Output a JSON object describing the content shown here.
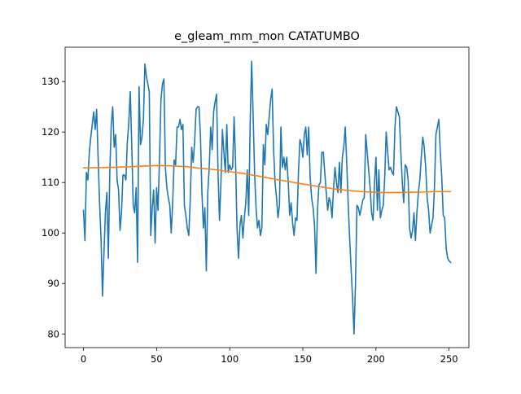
{
  "chart_data": {
    "type": "line",
    "title": "e_gleam_mm_mon CATATUMBO",
    "xlabel": "",
    "ylabel": "",
    "xlim": [
      -12.55,
      263.55
    ],
    "ylim": [
      77.3,
      136.8
    ],
    "xticks": [
      0,
      50,
      100,
      150,
      200,
      250
    ],
    "yticks": [
      80,
      90,
      100,
      110,
      120,
      130
    ],
    "grid": false,
    "series": [
      {
        "color": "#1f77b4",
        "points": [
          [
            0,
            104.5
          ],
          [
            1,
            98.5
          ],
          [
            2,
            112
          ],
          [
            3,
            110.5
          ],
          [
            4,
            116
          ],
          [
            5,
            119
          ],
          [
            6,
            121.5
          ],
          [
            7,
            124
          ],
          [
            8,
            120.5
          ],
          [
            9,
            124.5
          ],
          [
            10,
            115
          ],
          [
            11,
            106
          ],
          [
            12,
            99
          ],
          [
            13,
            87.5
          ],
          [
            14,
            96
          ],
          [
            15,
            104
          ],
          [
            16,
            108
          ],
          [
            17,
            95
          ],
          [
            18,
            112
          ],
          [
            19,
            121.5
          ],
          [
            20,
            125
          ],
          [
            21,
            117
          ],
          [
            22,
            119.5
          ],
          [
            23,
            110.5
          ],
          [
            24,
            108.5
          ],
          [
            25,
            100.5
          ],
          [
            26,
            104
          ],
          [
            27,
            111.5
          ],
          [
            28,
            111.5
          ],
          [
            29,
            110.5
          ],
          [
            30,
            118
          ],
          [
            31,
            122
          ],
          [
            32,
            128
          ],
          [
            33,
            117.5
          ],
          [
            34,
            105.5
          ],
          [
            35,
            104
          ],
          [
            36,
            109
          ],
          [
            37,
            94.2
          ],
          [
            38,
            129
          ],
          [
            39,
            117.5
          ],
          [
            40,
            119
          ],
          [
            41,
            122.5
          ],
          [
            42,
            133.5
          ],
          [
            43,
            131
          ],
          [
            44,
            129.5
          ],
          [
            45,
            128
          ],
          [
            46,
            99.5
          ],
          [
            47,
            105
          ],
          [
            48,
            108.5
          ],
          [
            49,
            98
          ],
          [
            50,
            109
          ],
          [
            51,
            104.5
          ],
          [
            52,
            115
          ],
          [
            53,
            126.5
          ],
          [
            54,
            129.5
          ],
          [
            55,
            130.5
          ],
          [
            56,
            113
          ],
          [
            57,
            109
          ],
          [
            58,
            107
          ],
          [
            59,
            105.5
          ],
          [
            60,
            100
          ],
          [
            61,
            106
          ],
          [
            62,
            114.5
          ],
          [
            63,
            113.5
          ],
          [
            64,
            121
          ],
          [
            65,
            121
          ],
          [
            66,
            122.5
          ],
          [
            67,
            120.5
          ],
          [
            68,
            121.5
          ],
          [
            69,
            105.5
          ],
          [
            70,
            103.5
          ],
          [
            71,
            101
          ],
          [
            72,
            99.5
          ],
          [
            73,
            106.5
          ],
          [
            74,
            117
          ],
          [
            75,
            114
          ],
          [
            76,
            118
          ],
          [
            77,
            124.5
          ],
          [
            78,
            125
          ],
          [
            79,
            125
          ],
          [
            80,
            119
          ],
          [
            81,
            108
          ],
          [
            82,
            101
          ],
          [
            83,
            105
          ],
          [
            84,
            92.5
          ],
          [
            85,
            108
          ],
          [
            86,
            113
          ],
          [
            87,
            121
          ],
          [
            88,
            116.5
          ],
          [
            89,
            124
          ],
          [
            90,
            126
          ],
          [
            91,
            127.5
          ],
          [
            92,
            112
          ],
          [
            93,
            102.5
          ],
          [
            94,
            110
          ],
          [
            95,
            120.5
          ],
          [
            96,
            116
          ],
          [
            97,
            112
          ],
          [
            98,
            121.5
          ],
          [
            99,
            112
          ],
          [
            100,
            113.5
          ],
          [
            101,
            112.5
          ],
          [
            102,
            113
          ],
          [
            103,
            123
          ],
          [
            104,
            114
          ],
          [
            105,
            101
          ],
          [
            106,
            95
          ],
          [
            107,
            101.5
          ],
          [
            108,
            103.5
          ],
          [
            109,
            99
          ],
          [
            110,
            103
          ],
          [
            111,
            106
          ],
          [
            112,
            112.5
          ],
          [
            113,
            103.5
          ],
          [
            114,
            122
          ],
          [
            115,
            134
          ],
          [
            116,
            123.5
          ],
          [
            117,
            112
          ],
          [
            118,
            105
          ],
          [
            119,
            101
          ],
          [
            120,
            102.5
          ],
          [
            121,
            99.5
          ],
          [
            122,
            101
          ],
          [
            123,
            117.5
          ],
          [
            124,
            113.5
          ],
          [
            125,
            121.5
          ],
          [
            126,
            119.5
          ],
          [
            127,
            123
          ],
          [
            128,
            126.5
          ],
          [
            129,
            128.5
          ],
          [
            130,
            116.5
          ],
          [
            131,
            110
          ],
          [
            132,
            107
          ],
          [
            133,
            103
          ],
          [
            134,
            105.5
          ],
          [
            135,
            121
          ],
          [
            136,
            113
          ],
          [
            137,
            115
          ],
          [
            138,
            112.5
          ],
          [
            139,
            115
          ],
          [
            140,
            110
          ],
          [
            141,
            103.5
          ],
          [
            142,
            106
          ],
          [
            143,
            102
          ],
          [
            144,
            99.5
          ],
          [
            145,
            103
          ],
          [
            146,
            102.5
          ],
          [
            147,
            112
          ],
          [
            148,
            118.5
          ],
          [
            149,
            117.5
          ],
          [
            150,
            115
          ],
          [
            151,
            119.5
          ],
          [
            152,
            121
          ],
          [
            153,
            115.5
          ],
          [
            154,
            121
          ],
          [
            155,
            111
          ],
          [
            156,
            107
          ],
          [
            157,
            105
          ],
          [
            158,
            101.5
          ],
          [
            159,
            92
          ],
          [
            160,
            104.5
          ],
          [
            161,
            109.5
          ],
          [
            162,
            110
          ],
          [
            163,
            116
          ],
          [
            164,
            116
          ],
          [
            165,
            112
          ],
          [
            166,
            108
          ],
          [
            167,
            104.5
          ],
          [
            168,
            107
          ],
          [
            169,
            106
          ],
          [
            170,
            103
          ],
          [
            171,
            109
          ],
          [
            172,
            113
          ],
          [
            173,
            110
          ],
          [
            174,
            108
          ],
          [
            175,
            114
          ],
          [
            176,
            108
          ],
          [
            177,
            115
          ],
          [
            178,
            117
          ],
          [
            179,
            121
          ],
          [
            180,
            114
          ],
          [
            181,
            106
          ],
          [
            182,
            99
          ],
          [
            183,
            93
          ],
          [
            184,
            87
          ],
          [
            185,
            80
          ],
          [
            186,
            90
          ],
          [
            187,
            105.5
          ],
          [
            188,
            105
          ],
          [
            189,
            103.5
          ],
          [
            190,
            105
          ],
          [
            191,
            106.5
          ],
          [
            192,
            107
          ],
          [
            193,
            119.5
          ],
          [
            194,
            116
          ],
          [
            195,
            112.5
          ],
          [
            196,
            109
          ],
          [
            197,
            104
          ],
          [
            198,
            102.5
          ],
          [
            199,
            110
          ],
          [
            200,
            115
          ],
          [
            201,
            104.5
          ],
          [
            202,
            112.5
          ],
          [
            203,
            103
          ],
          [
            204,
            104.5
          ],
          [
            205,
            105.5
          ],
          [
            206,
            111
          ],
          [
            207,
            120
          ],
          [
            208,
            116
          ],
          [
            209,
            112.5
          ],
          [
            210,
            113
          ],
          [
            211,
            112
          ],
          [
            212,
            111.5
          ],
          [
            213,
            121
          ],
          [
            214,
            125
          ],
          [
            215,
            124
          ],
          [
            216,
            123
          ],
          [
            217,
            116
          ],
          [
            218,
            110
          ],
          [
            219,
            106
          ],
          [
            220,
            113.5
          ],
          [
            221,
            113
          ],
          [
            222,
            110.5
          ],
          [
            223,
            101
          ],
          [
            224,
            99
          ],
          [
            225,
            100.5
          ],
          [
            226,
            104
          ],
          [
            227,
            98.5
          ],
          [
            228,
            104
          ],
          [
            229,
            108
          ],
          [
            230,
            110.5
          ],
          [
            231,
            115
          ],
          [
            232,
            119
          ],
          [
            233,
            117
          ],
          [
            234,
            113
          ],
          [
            235,
            107
          ],
          [
            236,
            104.5
          ],
          [
            237,
            100
          ],
          [
            238,
            101.5
          ],
          [
            239,
            103
          ],
          [
            240,
            109
          ],
          [
            241,
            119.5
          ],
          [
            242,
            121
          ],
          [
            243,
            122.5
          ],
          [
            244,
            116
          ],
          [
            245,
            111
          ],
          [
            246,
            103.5
          ],
          [
            247,
            103
          ],
          [
            248,
            97
          ],
          [
            249,
            95
          ],
          [
            250,
            94.5
          ],
          [
            251,
            94.2
          ]
        ]
      },
      {
        "color": "#ff7f0e",
        "points": [
          [
            0,
            112.9
          ],
          [
            10,
            112.95
          ],
          [
            20,
            113.0
          ],
          [
            30,
            113.1
          ],
          [
            40,
            113.25
          ],
          [
            50,
            113.35
          ],
          [
            60,
            113.3
          ],
          [
            70,
            113.15
          ],
          [
            80,
            112.8
          ],
          [
            90,
            112.55
          ],
          [
            100,
            112.15
          ],
          [
            110,
            111.75
          ],
          [
            120,
            111.25
          ],
          [
            130,
            110.7
          ],
          [
            140,
            110.2
          ],
          [
            150,
            109.7
          ],
          [
            160,
            109.25
          ],
          [
            170,
            108.8
          ],
          [
            180,
            108.45
          ],
          [
            190,
            108.2
          ],
          [
            200,
            108.05
          ],
          [
            210,
            108.0
          ],
          [
            220,
            108.05
          ],
          [
            230,
            108.1
          ],
          [
            240,
            108.2
          ],
          [
            251,
            108.2
          ]
        ]
      }
    ]
  }
}
